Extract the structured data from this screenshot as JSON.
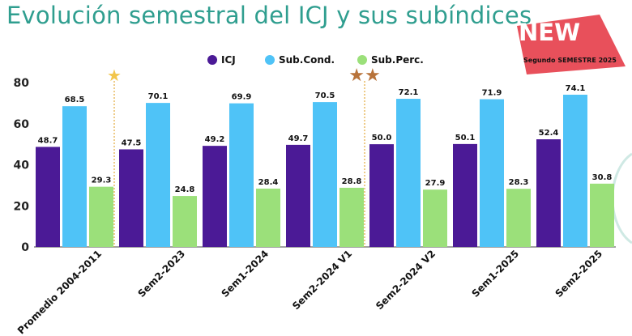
{
  "title": "Evolución semestral del ICJ y sus subíndices",
  "badge": {
    "text": "NEW",
    "subtitle": "Segundo SEMESTRE 2025",
    "color": "#e8505b"
  },
  "colors": {
    "ICJ": "#4b1a96",
    "Sub.Cond.": "#4fc3f7",
    "Sub.Perc.": "#9be07a"
  },
  "markers": [
    {
      "text": "★",
      "after_category": 0,
      "color": "#f2c54b"
    },
    {
      "text": "★★",
      "after_category": 3,
      "color": "#b8733a"
    }
  ],
  "chart_data": {
    "type": "bar",
    "categories": [
      "Promedio 2004-2011",
      "Sem2-2023",
      "Sem1-2024",
      "Sem2-2024 V1",
      "Sem2-2024 V2",
      "Sem1-2025",
      "Sem2-2025"
    ],
    "series": [
      {
        "name": "ICJ",
        "values": [
          48.7,
          47.5,
          49.2,
          49.7,
          50.0,
          50.1,
          52.4
        ]
      },
      {
        "name": "Sub.Cond.",
        "values": [
          68.5,
          70.1,
          69.9,
          70.5,
          72.1,
          71.9,
          74.1
        ]
      },
      {
        "name": "Sub.Perc.",
        "values": [
          29.3,
          24.8,
          28.4,
          28.8,
          27.9,
          28.3,
          30.8
        ]
      }
    ],
    "value_labels": [
      [
        "48.7",
        "47.5",
        "49.2",
        "49.7",
        "50.0",
        "50.1",
        "52.4"
      ],
      [
        "68.5",
        "70.1",
        "69.9",
        "70.5",
        "72.1",
        "71.9",
        "74.1"
      ],
      [
        "29.3",
        "24.8",
        "28.4",
        "28.8",
        "27.9",
        "28.3",
        "30.8"
      ]
    ],
    "yticks": [
      "0",
      "20",
      "40",
      "60",
      "80"
    ],
    "ylim": [
      0,
      80
    ],
    "legend_position": "top-center",
    "grid": false
  }
}
